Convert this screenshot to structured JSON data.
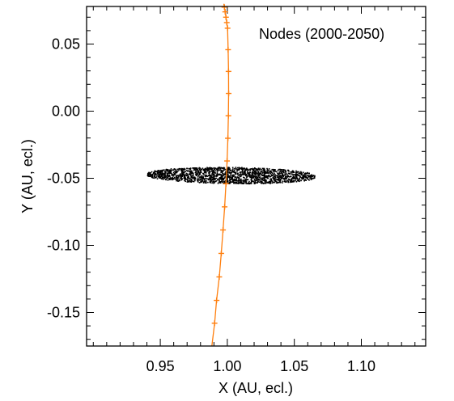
{
  "chart_data": {
    "type": "scatter",
    "title": "",
    "annotation": "Nodes (2000-2050)",
    "xlabel": "X (AU, ecl.)",
    "ylabel": "Y (AU, ecl.)",
    "xlim": [
      0.895,
      1.148
    ],
    "ylim": [
      -0.175,
      0.078
    ],
    "xticks": [
      0.95,
      1.0,
      1.05,
      1.1
    ],
    "xtick_labels": [
      "0.95",
      "1.00",
      "1.05",
      "1.10"
    ],
    "yticks": [
      0.05,
      0.0,
      -0.05,
      -0.1,
      -0.15
    ],
    "ytick_labels": [
      "0.05",
      "0.00",
      "-0.05",
      "-0.10",
      "-0.15"
    ],
    "grid": false,
    "colors": {
      "orbit": "#ff7f0e",
      "nodes": "#000000",
      "axes": "#000000"
    },
    "series": [
      {
        "name": "",
        "kind": "line-with-markers",
        "x": [
          0.9905,
          0.992,
          0.994,
          0.9955,
          0.9968,
          0.998,
          0.999,
          0.9998,
          1.0004,
          1.0008,
          1.001,
          1.0009,
          1.0006,
          1.0002,
          0.9996,
          0.999,
          0.9984,
          0.9978,
          0.9974
        ],
        "y": [
          -0.158,
          -0.141,
          -0.1235,
          -0.106,
          -0.0885,
          -0.0713,
          -0.0541,
          -0.0371,
          -0.0202,
          -0.0034,
          0.0132,
          0.0296,
          0.0458,
          0.0618,
          0.066,
          0.07,
          0.074,
          0.0775,
          0.08
        ]
      },
      {
        "name": "",
        "kind": "node-cloud",
        "x_range": [
          0.94,
          1.065
        ],
        "y_center": -0.0475,
        "y_half_width": 0.0055
      }
    ]
  }
}
